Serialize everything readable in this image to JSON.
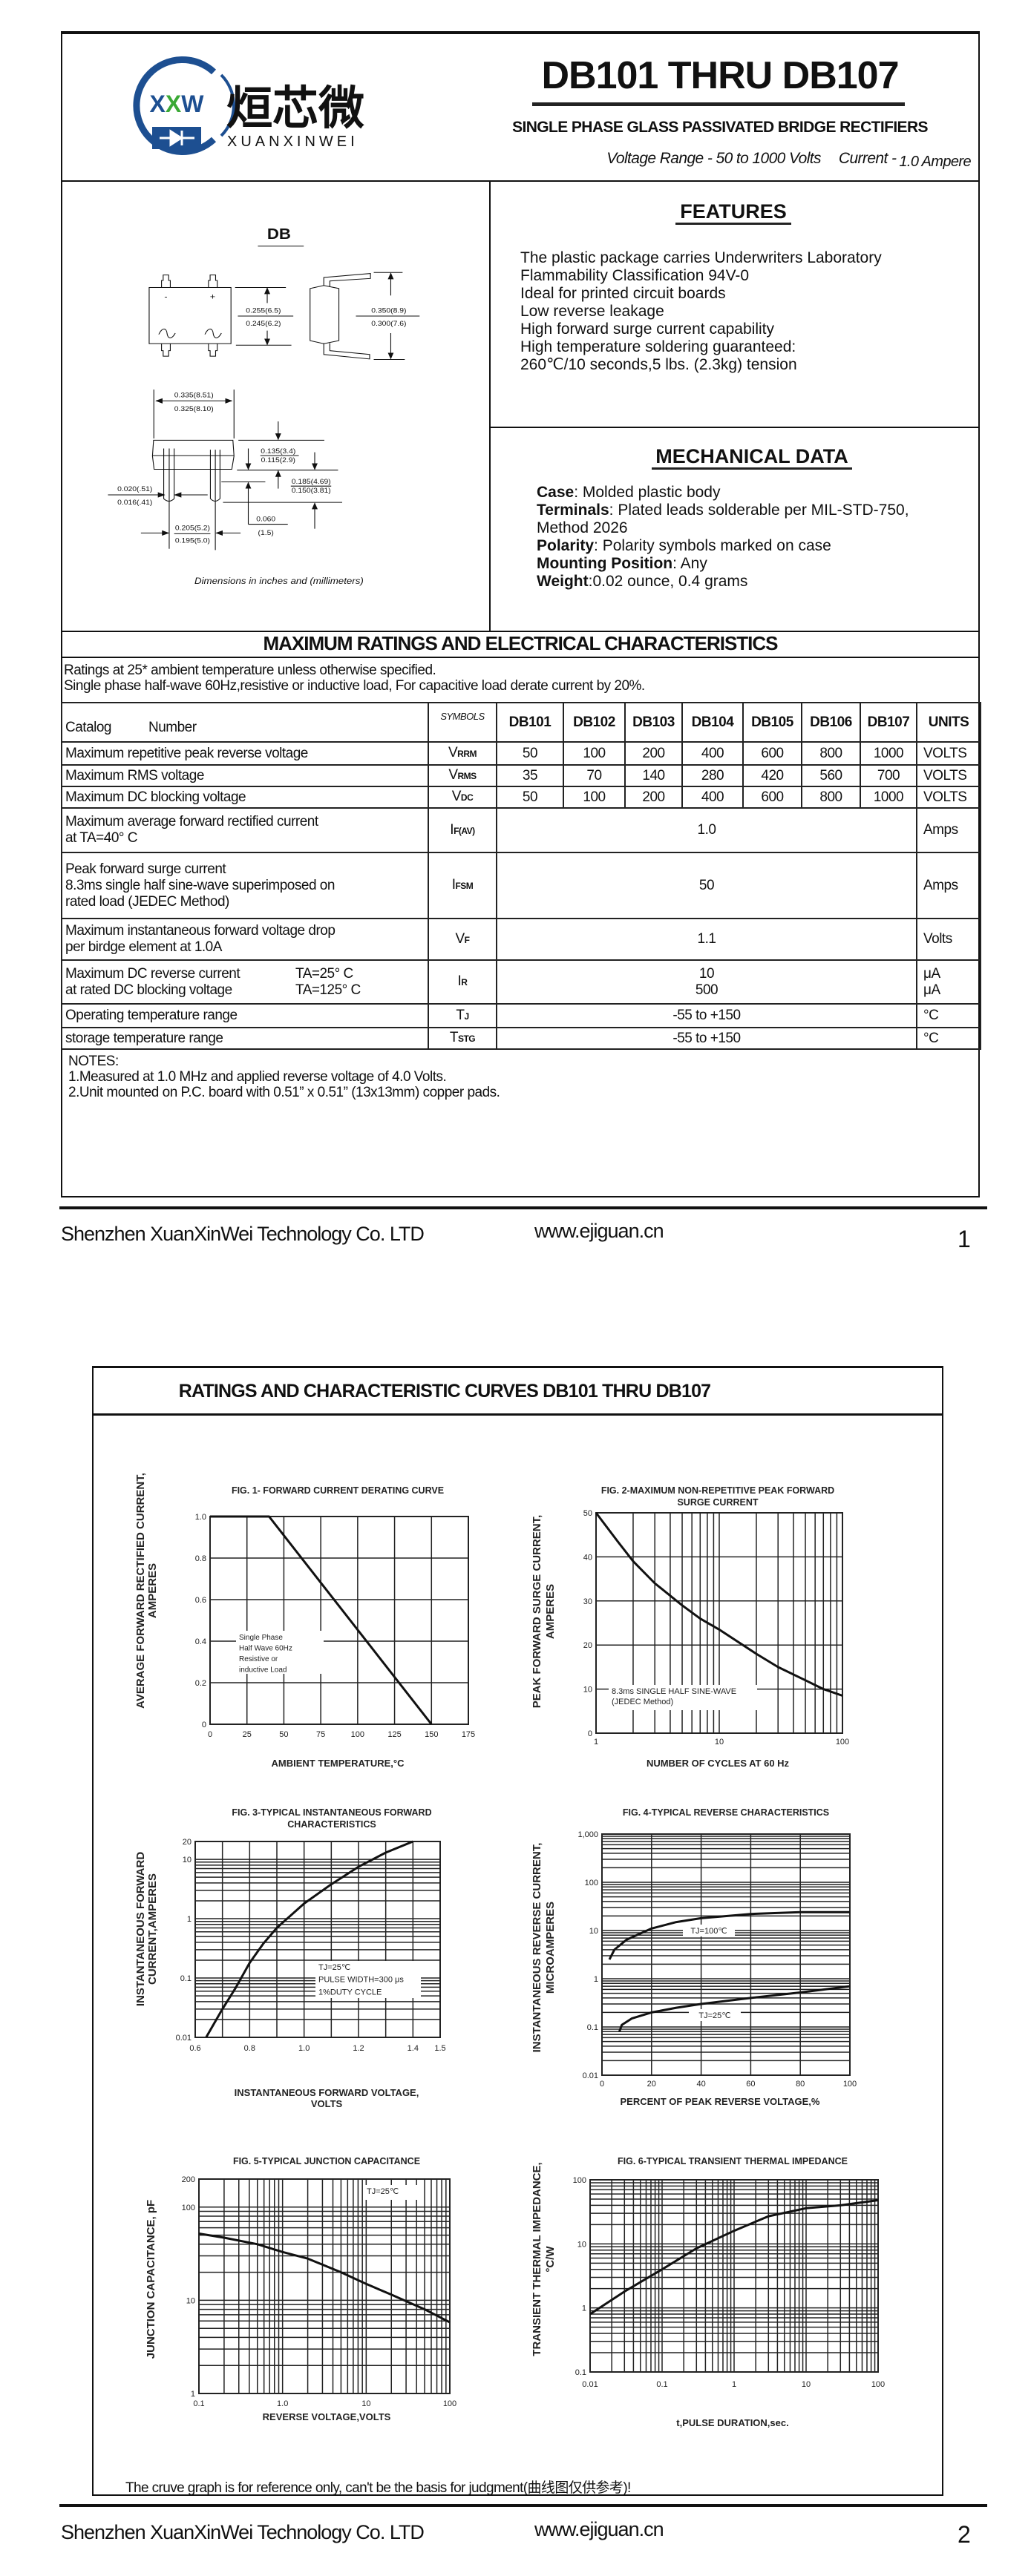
{
  "logo": {
    "mark": "XXW",
    "chinese": "烜芯微",
    "name": "XUANXINWEI",
    "brand_blue": "#1d4f91",
    "brand_green": "#3aa935"
  },
  "header": {
    "title": "DB101 THRU DB107",
    "subtitle": "SINGLE PHASE GLASS PASSIVATED BRIDGE RECTIFIERS",
    "voltage_range": "Voltage Range - 50 to 1000 Volts",
    "current_label": "Current -",
    "current_value": "1.0 Ampere"
  },
  "diagram": {
    "title": "DB",
    "minus": "-",
    "plus": "+",
    "dims": [
      "0.255(6.5)",
      "0.245(6.2)",
      "0.350(8.9)",
      "0.300(7.6)",
      "0.335(8.51)",
      "0.325(8.10)",
      "0.135(3.4)",
      "0.115(2.9)",
      "0.185(4.69)",
      "0.150(3.81)",
      "0.020(.51)",
      "0.016(.41)",
      "0.060",
      "(1.5)",
      "0.205(5.2)",
      "0.195(5.0)"
    ],
    "caption": "Dimensions in inches and (millimeters)"
  },
  "features": {
    "title": "FEATURES",
    "lines": [
      "The plastic package carries Underwriters Laboratory",
      "Flammability Classification 94V-0",
      "Ideal for printed circuit boards",
      "Low reverse leakage",
      "High forward surge current capability",
      "High temperature soldering guaranteed:",
      "260℃/10 seconds,5 lbs. (2.3kg) tension"
    ]
  },
  "mechanical": {
    "title": "MECHANICAL DATA",
    "items": [
      {
        "label": "Case",
        "value": ": Molded plastic body"
      },
      {
        "label": "Terminals",
        "value": ": Plated leads solderable per MIL-STD-750,"
      },
      {
        "label": "",
        "value": " Method 2026"
      },
      {
        "label": "Polarity",
        "value": ": Polarity symbols marked on case"
      },
      {
        "label": "Mounting Position",
        "value": ": Any"
      },
      {
        "label": "Weight",
        "value": ":0.02 ounce, 0.4 grams"
      }
    ]
  },
  "ratings": {
    "title": "MAXIMUM RATINGS AND ELECTRICAL CHARACTERISTICS",
    "notes": [
      "Ratings at 25* ambient temperature unless otherwise specified.",
      "Single phase half-wave 60Hz,resistive or inductive load, For capacitive load derate current by 20%."
    ],
    "header": {
      "catalog": "Catalog",
      "number": "Number",
      "symbols": "SYMBOLS",
      "models": [
        "DB101",
        "DB102",
        "DB103",
        "DB104",
        "DB105",
        "DB106",
        "DB107"
      ],
      "units": "UNITS"
    },
    "rows": [
      {
        "desc": [
          "Maximum repetitive peak reverse voltage"
        ],
        "sym": "V",
        "sub": "RRM",
        "values": [
          "50",
          "100",
          "200",
          "400",
          "600",
          "800",
          "1000"
        ],
        "unit": "VOLTS"
      },
      {
        "desc": [
          "Maximum RMS voltage"
        ],
        "sym": "V",
        "sub": "RMS",
        "values": [
          "35",
          "70",
          "140",
          "280",
          "420",
          "560",
          "700"
        ],
        "unit": "VOLTS"
      },
      {
        "desc": [
          "Maximum DC blocking voltage"
        ],
        "sym": "V",
        "sub": "DC",
        "values": [
          "50",
          "100",
          "200",
          "400",
          "600",
          "800",
          "1000"
        ],
        "unit": "VOLTS"
      },
      {
        "desc": [
          "Maximum average forward rectified current",
          "at TA=40° C"
        ],
        "sym": "I",
        "sub": "F(AV)",
        "value": "1.0",
        "unit": "Amps"
      },
      {
        "desc": [
          "Peak forward surge current",
          "8.3ms single half sine-wave superimposed on",
          "rated load (JEDEC Method)"
        ],
        "sym": "I",
        "sub": "FSM",
        "value": "50",
        "unit": "Amps"
      },
      {
        "desc": [
          "Maximum instantaneous forward voltage drop",
          "per birdge element at 1.0A"
        ],
        "sym": "V",
        "sub": "F",
        "value": "1.1",
        "unit": "Volts"
      },
      {
        "desc": [
          "Maximum DC reverse current",
          "at rated DC blocking voltage"
        ],
        "cond": [
          "TA=25° C",
          "TA=125° C"
        ],
        "sym": "I",
        "sub": "R",
        "values2": [
          "10",
          "500"
        ],
        "units2": [
          "μA",
          "μA"
        ]
      },
      {
        "desc": [
          "Operating temperature range"
        ],
        "sym": "T",
        "sub": "J",
        "value": "-55 to +150",
        "unit": "°C"
      },
      {
        "desc": [
          "storage temperature range"
        ],
        "sym": "T",
        "sub": "STG",
        "value": "-55 to +150",
        "unit": "°C"
      }
    ],
    "footnotes": [
      "NOTES:",
      "1.Measured at 1.0 MHz and applied reverse voltage of 4.0 Volts.",
      "2.Unit mounted on P.C. board with 0.51”  x 0.51”  (13x13mm) copper pads."
    ]
  },
  "footer": {
    "company": "Shenzhen XuanXinWei Technology Co. LTD",
    "website": "www.ejiguan.cn",
    "page1": "1",
    "page2": "2"
  },
  "page2": {
    "title": "RATINGS AND CHARACTERISTIC CURVES DB101 THRU DB107",
    "disclaimer": "The cruve graph is for reference only, can't be the basis for judgment(曲线图仅供参考)!"
  },
  "chart_data": [
    {
      "type": "line",
      "title": [
        "FIG. 1- FORWARD CURRENT DERATING CURVE"
      ],
      "xlabel": [
        "AMBIENT TEMPERATURE,°C"
      ],
      "ylabel": [
        "AVERAGE FORWARD RECTIFIED CURRENT,",
        "AMPERES"
      ],
      "xscale": "linear",
      "yscale": "linear",
      "xlim": [
        0,
        175
      ],
      "ylim": [
        0,
        1.0
      ],
      "grid": true,
      "xticks": [
        0,
        25,
        50,
        75,
        100,
        125,
        150,
        175
      ],
      "xtick_labels": [
        "0",
        "25",
        "50",
        "75",
        "100",
        "125",
        "150",
        "175"
      ],
      "yticks": [
        0,
        0.2,
        0.4,
        0.6,
        0.8,
        1.0
      ],
      "ytick_labels": [
        "0",
        "0.2",
        "0.4",
        "0.6",
        "0.8",
        "1.0"
      ],
      "series": [
        {
          "points": [
            [
              0,
              1.0
            ],
            [
              40,
              1.0
            ],
            [
              150,
              0
            ]
          ]
        }
      ],
      "annotation": [
        "Single Phase",
        "Half Wave 60Hz",
        "Resistive or",
        "inductive Load"
      ]
    },
    {
      "type": "line",
      "title": [
        "FIG. 2-MAXIMUM NON-REPETITIVE PEAK FORWARD",
        "SURGE CURRENT"
      ],
      "xlabel": [
        "NUMBER OF CYCLES AT 60 Hz"
      ],
      "ylabel": [
        "PEAK  FORWARD SURGE CURRENT,",
        "AMPERES"
      ],
      "xscale": "log",
      "yscale": "linear",
      "xlim": [
        1,
        100
      ],
      "ylim": [
        0,
        50
      ],
      "grid": true,
      "xticks": [
        1,
        10,
        100
      ],
      "xtick_labels": [
        "1",
        "10",
        "100"
      ],
      "yticks": [
        0,
        10,
        20,
        30,
        40,
        50
      ],
      "ytick_labels": [
        "0",
        "10",
        "20",
        "30",
        "40",
        "50"
      ],
      "series": [
        {
          "points": [
            [
              1,
              50
            ],
            [
              1.5,
              43.5
            ],
            [
              2,
              39
            ],
            [
              3,
              34
            ],
            [
              5,
              29
            ],
            [
              7,
              26
            ],
            [
              10,
              23.5
            ],
            [
              20,
              18
            ],
            [
              30,
              15
            ],
            [
              50,
              12
            ],
            [
              70,
              10
            ],
            [
              100,
              8.5
            ]
          ]
        }
      ],
      "annotation": [
        "8.3ms SINGLE HALF SINE-WAVE",
        "(JEDEC Method)"
      ]
    },
    {
      "type": "line",
      "title": [
        "FIG. 3-TYPICAL INSTANTANEOUS FORWARD",
        "CHARACTERISTICS"
      ],
      "xlabel": [
        "INSTANTANEOUS FORWARD VOLTAGE,",
        "VOLTS"
      ],
      "ylabel": [
        "INSTANTANEOUS FORWARD",
        "CURRENT,AMPERES"
      ],
      "xscale": "linear",
      "yscale": "log",
      "xlim": [
        0.6,
        1.5
      ],
      "ylim": [
        0.01,
        20
      ],
      "grid": true,
      "xticks": [
        0.6,
        0.8,
        1.0,
        1.2,
        1.4,
        1.5
      ],
      "xtick_labels": [
        "0.6",
        "0.8",
        "1.0",
        "1.2",
        "1.4",
        "1.5"
      ],
      "yticks": [
        0.01,
        0.1,
        1,
        10,
        20
      ],
      "ytick_labels": [
        "0.01",
        "0.1",
        "1",
        "10",
        "20"
      ],
      "series": [
        {
          "points": [
            [
              0.64,
              0.01
            ],
            [
              0.7,
              0.03
            ],
            [
              0.75,
              0.07
            ],
            [
              0.8,
              0.18
            ],
            [
              0.85,
              0.38
            ],
            [
              0.9,
              0.7
            ],
            [
              1.0,
              1.8
            ],
            [
              1.1,
              3.8
            ],
            [
              1.2,
              7.5
            ],
            [
              1.3,
              13
            ],
            [
              1.4,
              20
            ]
          ]
        }
      ],
      "annotation": [
        "TJ=25℃",
        "PULSE WIDTH=300 μs",
        "1%DUTY CYCLE"
      ]
    },
    {
      "type": "line",
      "title": [
        "FIG. 4-TYPICAL REVERSE CHARACTERISTICS"
      ],
      "xlabel": [
        "PERCENT OF PEAK REVERSE VOLTAGE,%"
      ],
      "ylabel": [
        "INSTANTANEOUS REVERSE CURRENT,",
        "MICROAMPERES"
      ],
      "xscale": "linear",
      "yscale": "log",
      "xlim": [
        0,
        100
      ],
      "ylim": [
        0.01,
        1000
      ],
      "grid": true,
      "xticks": [
        0,
        20,
        40,
        60,
        80,
        100
      ],
      "xtick_labels": [
        "0",
        "20",
        "40",
        "60",
        "80",
        "100"
      ],
      "yticks": [
        0.01,
        0.1,
        1,
        10,
        100,
        1000
      ],
      "ytick_labels": [
        "0.01",
        "0.1",
        "1",
        "10",
        "100",
        "1,000"
      ],
      "series": [
        {
          "name": "TJ=100℃",
          "points": [
            [
              3,
              2.5
            ],
            [
              5,
              4
            ],
            [
              10,
              6.5
            ],
            [
              20,
              11
            ],
            [
              30,
              15
            ],
            [
              40,
              18
            ],
            [
              60,
              22
            ],
            [
              80,
              24
            ],
            [
              100,
              24
            ]
          ]
        },
        {
          "name": "TJ=25℃",
          "points": [
            [
              7,
              0.08
            ],
            [
              8,
              0.11
            ],
            [
              12,
              0.15
            ],
            [
              20,
              0.2
            ],
            [
              30,
              0.25
            ],
            [
              40,
              0.3
            ],
            [
              60,
              0.4
            ],
            [
              80,
              0.52
            ],
            [
              100,
              0.7
            ]
          ]
        }
      ]
    },
    {
      "type": "line",
      "title": [
        "FIG. 5-TYPICAL JUNCTION CAPACITANCE"
      ],
      "xlabel": [
        "REVERSE VOLTAGE,VOLTS"
      ],
      "ylabel": [
        "JUNCTION CAPACITANCE, pF"
      ],
      "xscale": "log",
      "yscale": "log",
      "xlim": [
        0.1,
        100
      ],
      "ylim": [
        1,
        200
      ],
      "grid": true,
      "xticks": [
        0.1,
        1,
        10,
        100
      ],
      "xtick_labels": [
        "0.1",
        "1.0",
        "10",
        "100"
      ],
      "yticks": [
        1,
        10,
        100,
        200
      ],
      "ytick_labels": [
        "1",
        "10",
        "100",
        "200"
      ],
      "series": [
        {
          "points": [
            [
              0.1,
              52
            ],
            [
              0.2,
              47
            ],
            [
              0.5,
              40
            ],
            [
              1,
              33
            ],
            [
              2,
              28
            ],
            [
              5,
              20
            ],
            [
              10,
              15
            ],
            [
              20,
              11.5
            ],
            [
              50,
              8
            ],
            [
              100,
              5.8
            ]
          ]
        }
      ],
      "annotation": [
        "TJ=25℃"
      ]
    },
    {
      "type": "line",
      "title": [
        "FIG. 6-TYPICAL TRANSIENT THERMAL IMPEDANCE"
      ],
      "xlabel": [
        "t,PULSE DURATION,sec."
      ],
      "ylabel": [
        "TRANSIENT THERMAL IMPEDANCE,",
        "°C/W"
      ],
      "xscale": "log",
      "yscale": "log",
      "xlim": [
        0.01,
        100
      ],
      "ylim": [
        0.1,
        100
      ],
      "grid": true,
      "xticks": [
        0.01,
        0.1,
        1,
        10,
        100
      ],
      "xtick_labels": [
        "0.01",
        "0.1",
        "1",
        "10",
        "100"
      ],
      "yticks": [
        0.1,
        1,
        10,
        100
      ],
      "ytick_labels": [
        "0.1",
        "1",
        "10",
        "100"
      ],
      "series": [
        {
          "points": [
            [
              0.01,
              0.8
            ],
            [
              0.03,
              1.8
            ],
            [
              0.1,
              4
            ],
            [
              0.3,
              8.5
            ],
            [
              1,
              16
            ],
            [
              3,
              27
            ],
            [
              10,
              36
            ],
            [
              30,
              40
            ],
            [
              100,
              48
            ]
          ]
        }
      ]
    }
  ]
}
